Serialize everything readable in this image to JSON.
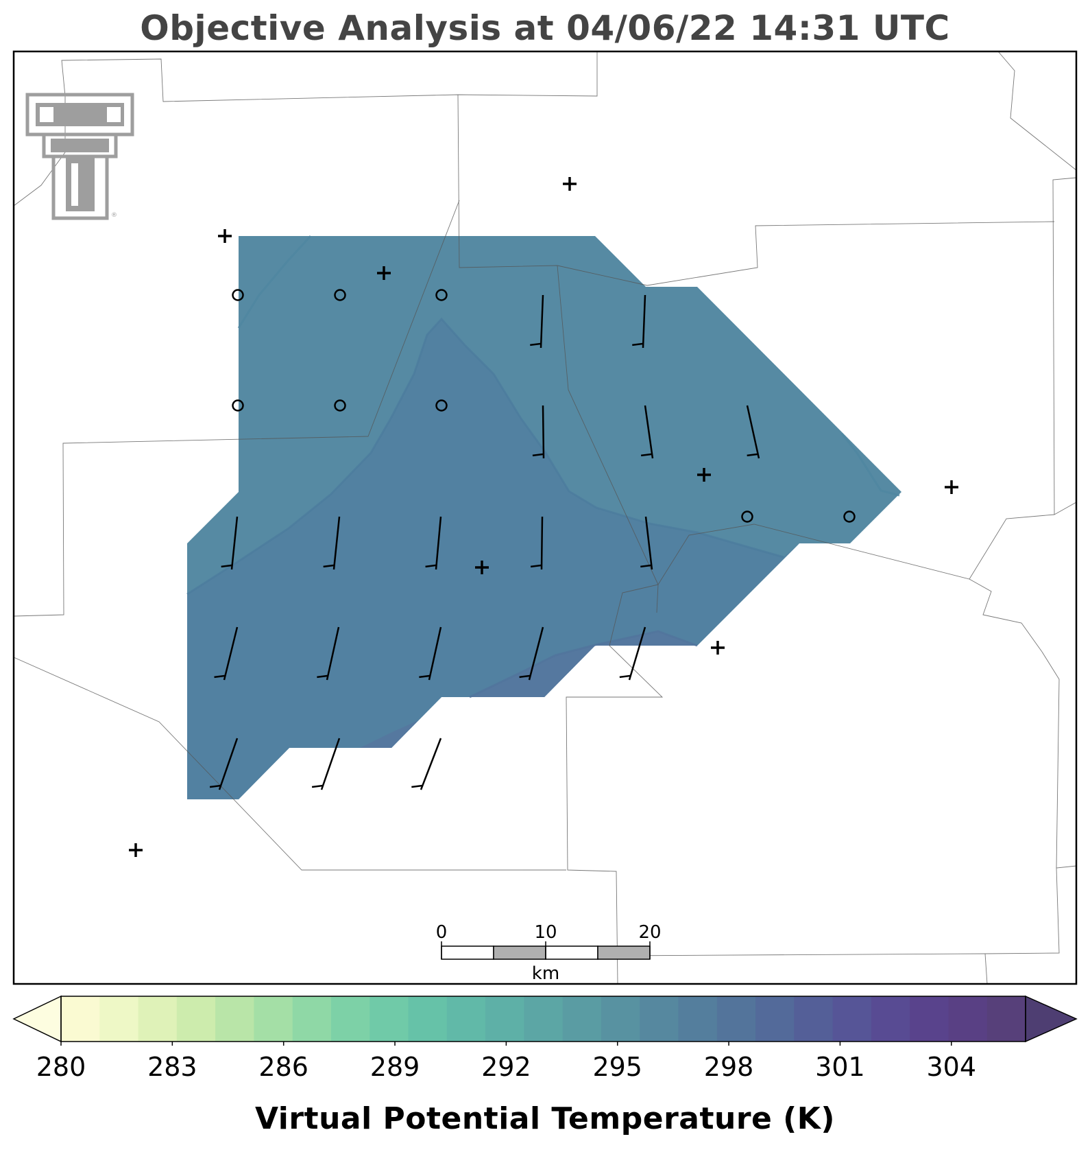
{
  "title": "Objective Analysis at 04/06/22 14:31 UTC",
  "colorbar": {
    "label": "Virtual Potential Temperature (K)",
    "min": 280,
    "max": 306,
    "step": 1,
    "tick_labels": [
      "280",
      "283",
      "286",
      "289",
      "292",
      "295",
      "298",
      "301",
      "304"
    ],
    "extend": "both",
    "colors": [
      "#fafad2",
      "#eef8c6",
      "#dff2b8",
      "#cdecad",
      "#b9e5a8",
      "#a4dfa6",
      "#8fd8a6",
      "#7dd1a7",
      "#70caa8",
      "#66c2a8",
      "#61b9a8",
      "#5eb0a7",
      "#5ca6a5",
      "#5a9ca3",
      "#5892a1",
      "#56889f",
      "#547e9d",
      "#53749b",
      "#536a9a",
      "#545f98",
      "#565597",
      "#584b93",
      "#59438c",
      "#594084",
      "#57407a"
    ],
    "under_color": "#fdfde0",
    "over_color": "#4e3e72"
  },
  "analysis_fill": {
    "variable": "Virtual Potential Temperature",
    "units": "K",
    "contour_levels": [
      295,
      296,
      297,
      298
    ],
    "colors": {
      "light": "#568aa3",
      "dark": "#5281a1"
    }
  },
  "wind_barbs": {
    "calm_symbol": "circle",
    "station_symbol": "plus"
  },
  "scale_bar": {
    "labels": [
      "0",
      "10",
      "20"
    ],
    "unit": "km"
  },
  "logo": {
    "name": "Double T",
    "text": "TT"
  }
}
